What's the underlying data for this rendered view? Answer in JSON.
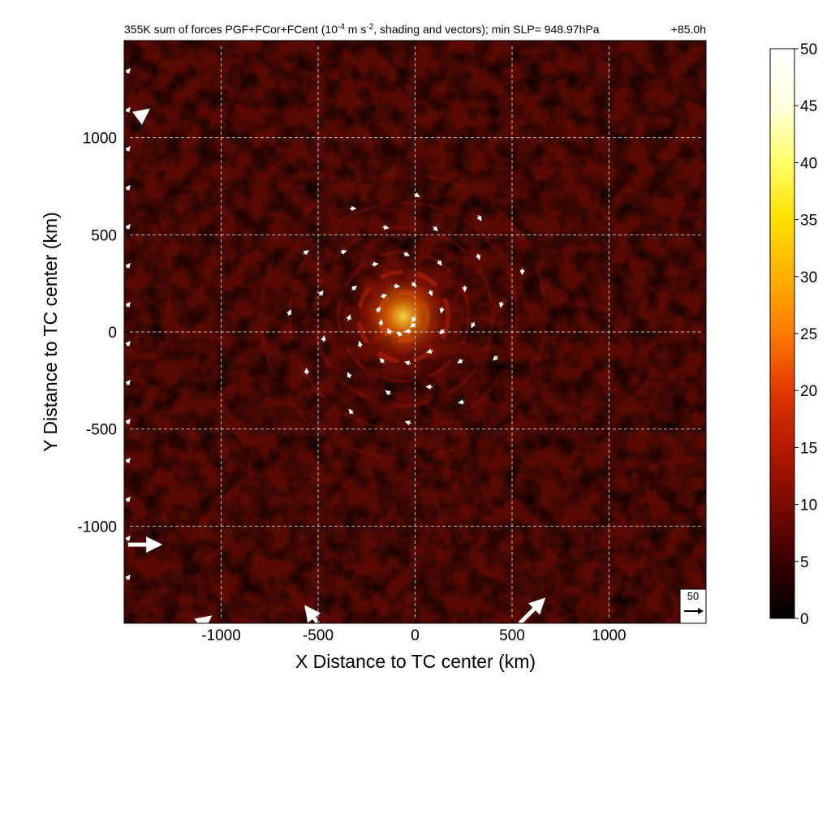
{
  "title_main": "355K sum of forces PGF+FCor+FCent (10",
  "title_exp1": "-4",
  "title_mid": " m s",
  "title_exp2": "-2",
  "title_end": ", shading and vectors); min SLP= 948.97hPa",
  "time_label": "+85.0h",
  "reference_vector_label": "50",
  "colors": {
    "colormap": [
      "#000000",
      "#3a0000",
      "#7a0a00",
      "#b51a00",
      "#e03a00",
      "#ff7a00",
      "#ffb000",
      "#ffe000",
      "#ffff66",
      "#ffffe0",
      "#ffffff"
    ],
    "background_field": "#5a0a02",
    "vector": "#ffffff"
  },
  "chart_data": {
    "type": "heatmap",
    "xlabel": "X Distance to TC center (km)",
    "ylabel": "Y Distance to TC center (km)",
    "xlim": [
      -1500,
      1500
    ],
    "ylim": [
      -1500,
      1500
    ],
    "x_ticks": [
      -1000,
      -500,
      0,
      500,
      1000
    ],
    "y_ticks": [
      -1000,
      -500,
      0,
      500,
      1000
    ],
    "x_tick_labels": [
      "-1000",
      "-500",
      "0",
      "500",
      "1000"
    ],
    "y_tick_labels": [
      "-1000",
      "-500",
      "0",
      "500",
      "1000"
    ],
    "grid": true,
    "colorbar": {
      "range": [
        0,
        50
      ],
      "ticks": [
        0,
        5,
        10,
        15,
        20,
        25,
        30,
        35,
        40,
        45,
        50
      ],
      "tick_labels": [
        "0",
        "5",
        "10",
        "15",
        "20",
        "25",
        "30",
        "35",
        "40",
        "45",
        "50"
      ],
      "placement": "right"
    },
    "features": {
      "vortex_center": [
        -60,
        80
      ],
      "max_intensity_near_center": 35
    },
    "vectors_large": [
      {
        "x": -1480,
        "y": -1095,
        "u": 160,
        "v": 0
      },
      {
        "x": -1420,
        "y": 1110,
        "u": 40,
        "v": 30
      },
      {
        "x": -500,
        "y": -1500,
        "u": -60,
        "v": 80
      },
      {
        "x": 540,
        "y": -1500,
        "u": 120,
        "v": 120
      },
      {
        "x": -1100,
        "y": -1500,
        "u": 40,
        "v": 30
      }
    ]
  }
}
